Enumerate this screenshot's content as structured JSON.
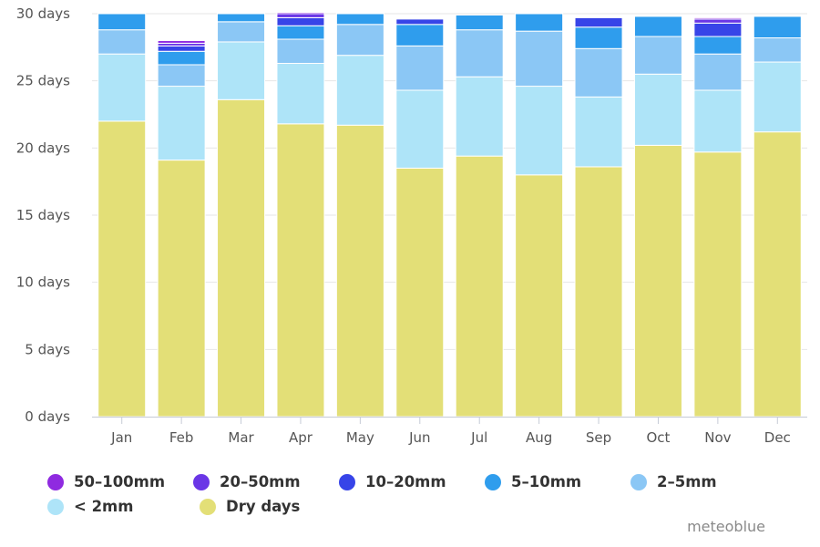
{
  "chart_data": {
    "type": "bar",
    "stacked": true,
    "categories": [
      "Jan",
      "Feb",
      "Mar",
      "Apr",
      "May",
      "Jun",
      "Jul",
      "Aug",
      "Sep",
      "Oct",
      "Nov",
      "Dec"
    ],
    "y_tick_labels": [
      "0 days",
      "5 days",
      "10 days",
      "15 days",
      "20 days",
      "25 days",
      "30 days"
    ],
    "y_ticks": [
      0,
      5,
      10,
      15,
      20,
      25,
      30
    ],
    "ylim": [
      0,
      30
    ],
    "grid": true,
    "legend_position": "bottom",
    "series": [
      {
        "name": "Dry days",
        "color": "#e3df77",
        "values": [
          22.0,
          19.1,
          23.6,
          21.8,
          21.7,
          18.5,
          19.4,
          18.0,
          18.6,
          20.2,
          19.7,
          21.2
        ]
      },
      {
        "name": "< 2mm",
        "color": "#aee4f8",
        "values": [
          5.0,
          5.5,
          4.3,
          4.5,
          5.2,
          5.8,
          5.9,
          6.6,
          5.2,
          5.3,
          4.6,
          5.2
        ]
      },
      {
        "name": "2-5mm",
        "color": "#8bc7f5",
        "values": [
          1.8,
          1.6,
          1.5,
          1.8,
          2.3,
          3.3,
          3.5,
          4.1,
          3.6,
          2.8,
          2.7,
          1.8
        ]
      },
      {
        "name": "5-10mm",
        "color": "#2f9ded",
        "values": [
          1.2,
          1.0,
          0.6,
          1.0,
          0.8,
          1.6,
          1.1,
          1.3,
          1.6,
          1.5,
          1.3,
          1.6
        ]
      },
      {
        "name": "10-20mm",
        "color": "#3744e8",
        "values": [
          0.0,
          0.4,
          0.0,
          0.6,
          0.0,
          0.4,
          0.0,
          0.0,
          0.7,
          0.0,
          1.0,
          0.0
        ]
      },
      {
        "name": "20-50mm",
        "color": "#6a36e6",
        "values": [
          0.0,
          0.2,
          0.0,
          0.3,
          0.0,
          0.0,
          0.0,
          0.0,
          0.0,
          0.0,
          0.3,
          0.0
        ]
      },
      {
        "name": "50-100mm",
        "color": "#8f2ae0",
        "values": [
          0.0,
          0.2,
          0.0,
          0.1,
          0.0,
          0.0,
          0.0,
          0.0,
          0.0,
          0.0,
          0.1,
          0.0
        ]
      }
    ]
  },
  "legend": {
    "rows": [
      [
        {
          "label": "50–100mm",
          "color": "#8f2ae0"
        },
        {
          "label": "20–50mm",
          "color": "#6a36e6"
        },
        {
          "label": "10–20mm",
          "color": "#3744e8"
        },
        {
          "label": "5–10mm",
          "color": "#2f9ded"
        },
        {
          "label": "2–5mm",
          "color": "#8bc7f5"
        }
      ],
      [
        {
          "label": "< 2mm",
          "color": "#aee4f8"
        },
        {
          "label": "Dry days",
          "color": "#e3df77"
        }
      ]
    ]
  },
  "credit": "meteoblue"
}
